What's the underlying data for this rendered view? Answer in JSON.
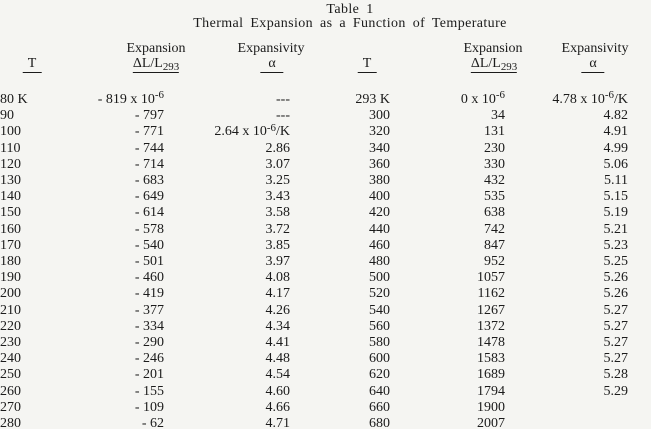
{
  "page": {
    "background_color": "#f5f5f2",
    "text_color": "#1b1b1b"
  },
  "title": "Table 1",
  "subtitle": "Thermal Expansion as a Function of Temperature",
  "header": {
    "t_label": "T",
    "expansion_label": "Expansion",
    "expansion_symbol": "ΔL/L_{293}",
    "expansivity_label": "Expansivity",
    "expansivity_symbol": "α"
  },
  "table": {
    "column_order": [
      "T",
      "Expansion ΔL/L293",
      "Expansivity α",
      "T",
      "Expansion ΔL/L293",
      "Expansivity α"
    ],
    "left_rows": [
      [
        "80 K",
        "- 819 x 10^{-6}",
        "---"
      ],
      [
        "90",
        "- 797",
        "---"
      ],
      [
        "100",
        "- 771",
        "2.64 x 10^{-6}/K"
      ],
      [
        "110",
        "- 744",
        "2.86"
      ],
      [
        "120",
        "- 714",
        "3.07"
      ],
      [
        "130",
        "- 683",
        "3.25"
      ],
      [
        "140",
        "- 649",
        "3.43"
      ],
      [
        "150",
        "- 614",
        "3.58"
      ],
      [
        "160",
        "- 578",
        "3.72"
      ],
      [
        "170",
        "- 540",
        "3.85"
      ],
      [
        "180",
        "- 501",
        "3.97"
      ],
      [
        "190",
        "- 460",
        "4.08"
      ],
      [
        "200",
        "- 419",
        "4.17"
      ],
      [
        "210",
        "- 377",
        "4.26"
      ],
      [
        "220",
        "- 334",
        "4.34"
      ],
      [
        "230",
        "- 290",
        "4.41"
      ],
      [
        "240",
        "- 246",
        "4.48"
      ],
      [
        "250",
        "- 201",
        "4.54"
      ],
      [
        "260",
        "- 155",
        "4.60"
      ],
      [
        "270",
        "- 109",
        "4.66"
      ],
      [
        "280",
        "- 62",
        "4.71"
      ]
    ],
    "right_rows": [
      [
        "293 K",
        "0 x 10^{-6}",
        "4.78 x 10^{-6}/K"
      ],
      [
        "300",
        "34",
        "4.82"
      ],
      [
        "320",
        "131",
        "4.91"
      ],
      [
        "340",
        "230",
        "4.99"
      ],
      [
        "360",
        "330",
        "5.06"
      ],
      [
        "380",
        "432",
        "5.11"
      ],
      [
        "400",
        "535",
        "5.15"
      ],
      [
        "420",
        "638",
        "5.19"
      ],
      [
        "440",
        "742",
        "5.21"
      ],
      [
        "460",
        "847",
        "5.23"
      ],
      [
        "480",
        "952",
        "5.25"
      ],
      [
        "500",
        "1057",
        "5.26"
      ],
      [
        "520",
        "1162",
        "5.26"
      ],
      [
        "540",
        "1267",
        "5.27"
      ],
      [
        "560",
        "1372",
        "5.27"
      ],
      [
        "580",
        "1478",
        "5.27"
      ],
      [
        "600",
        "1583",
        "5.27"
      ],
      [
        "620",
        "1689",
        "5.28"
      ],
      [
        "640",
        "1794",
        "5.29"
      ],
      [
        "660",
        "1900",
        ""
      ],
      [
        "680",
        "2007",
        ""
      ]
    ]
  }
}
